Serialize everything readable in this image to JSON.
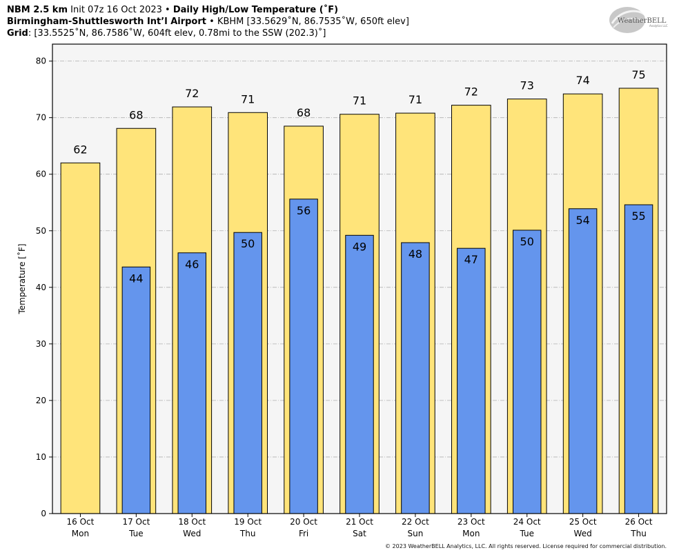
{
  "header": {
    "line1": {
      "model": "NBM 2.5 km",
      "init": "Init 07z 16 Oct 2023",
      "sep": " • ",
      "product": "Daily High/Low Temperature (˚F)"
    },
    "line2": {
      "site": "Birmingham-Shuttlesworth Int’l Airport",
      "sep": " • ",
      "details": "KBHM [33.5629˚N, 86.7535˚W, 650ft elev]"
    },
    "line3": {
      "label": "Grid",
      "details": ": [33.5525˚N, 86.7586˚W, 604ft elev, 0.78mi to the SSW (202.3)˚]"
    }
  },
  "logo": {
    "text": "WeatherBELL",
    "subtext": "Analytics LLC"
  },
  "copyright": "© 2023 WeatherBELL Analytics, LLC. All rights reserved. License required for commercial distribution.",
  "chart_data": {
    "type": "bar",
    "title": "Daily High/Low Temperature (˚F)",
    "ylabel": "Temperature [˚F]",
    "xlabel": "",
    "ylim": [
      0,
      83
    ],
    "yticks": [
      0,
      10,
      20,
      30,
      40,
      50,
      60,
      70,
      80
    ],
    "grid": true,
    "categories": [
      {
        "date": "16 Oct",
        "day": "Mon"
      },
      {
        "date": "17 Oct",
        "day": "Tue"
      },
      {
        "date": "18 Oct",
        "day": "Wed"
      },
      {
        "date": "19 Oct",
        "day": "Thu"
      },
      {
        "date": "20 Oct",
        "day": "Fri"
      },
      {
        "date": "21 Oct",
        "day": "Sat"
      },
      {
        "date": "22 Oct",
        "day": "Sun"
      },
      {
        "date": "23 Oct",
        "day": "Mon"
      },
      {
        "date": "24 Oct",
        "day": "Tue"
      },
      {
        "date": "25 Oct",
        "day": "Wed"
      },
      {
        "date": "26 Oct",
        "day": "Thu"
      }
    ],
    "series": [
      {
        "key": "high",
        "color": "#ffe47a",
        "values": [
          62,
          68.1,
          71.9,
          70.9,
          68.5,
          70.6,
          70.8,
          72.2,
          73.3,
          74.2,
          75.2
        ],
        "labels": [
          "62",
          "68",
          "72",
          "71",
          "68",
          "71",
          "71",
          "72",
          "73",
          "74",
          "75"
        ]
      },
      {
        "key": "low",
        "color": "#6495ed",
        "values": [
          null,
          43.6,
          46.1,
          49.7,
          55.6,
          49.2,
          47.9,
          46.9,
          50.1,
          53.9,
          54.6
        ],
        "labels": [
          "",
          "44",
          "46",
          "50",
          "56",
          "49",
          "48",
          "47",
          "50",
          "54",
          "55"
        ]
      }
    ],
    "colors": {
      "plot_bg": "#f5f5f5",
      "grid": "#b0b0b0",
      "high": "#ffe47a",
      "low": "#6495ed"
    }
  }
}
